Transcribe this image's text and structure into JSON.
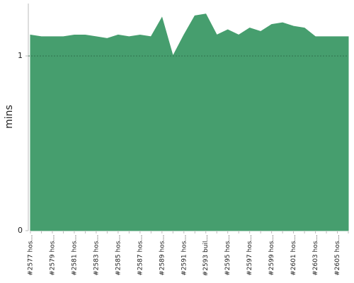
{
  "chart_data": {
    "type": "area",
    "ylabel": "mins",
    "categories": [
      "#2577 hos...",
      null,
      "#2579 hos...",
      null,
      "#2581 hos...",
      null,
      "#2583 hos...",
      null,
      "#2585 hos...",
      null,
      "#2587 hos...",
      null,
      "#2589 hos...",
      null,
      "#2591 hos...",
      null,
      "#2593 buil...",
      null,
      "#2595 hos...",
      null,
      "#2597 hos...",
      null,
      "#2599 hos...",
      null,
      "#2601 hos...",
      null,
      "#2603 hos...",
      null,
      "#2605 hos...",
      null
    ],
    "values": [
      1.12,
      1.11,
      1.11,
      1.11,
      1.12,
      1.12,
      1.11,
      1.1,
      1.12,
      1.11,
      1.12,
      1.11,
      1.22,
      1.0,
      1.12,
      1.23,
      1.24,
      1.12,
      1.15,
      1.12,
      1.16,
      1.14,
      1.18,
      1.19,
      1.17,
      1.16,
      1.11,
      1.11,
      1.11,
      1.11
    ],
    "color": "#469e6e",
    "ylim": [
      0,
      1.3
    ],
    "yticks": [
      0,
      1
    ],
    "grid": true
  }
}
